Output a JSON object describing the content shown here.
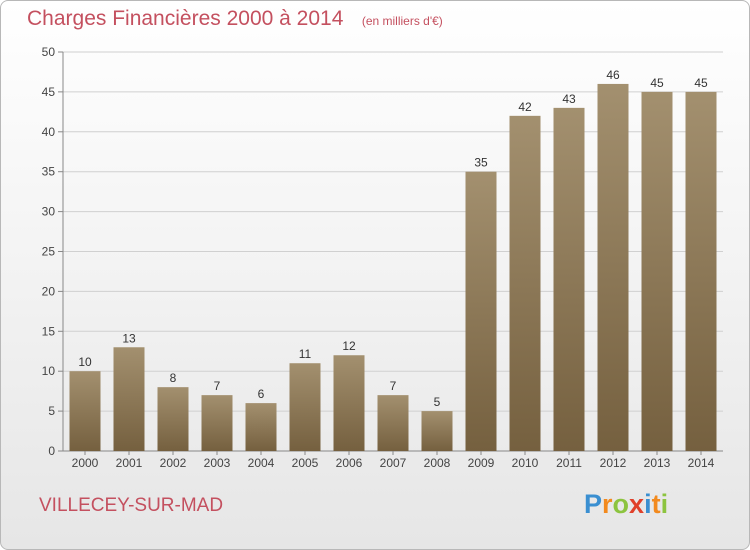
{
  "chart_data": {
    "type": "bar",
    "title": "Charges Financières 2000 à 2014",
    "unit": "(en milliers d'€)",
    "categories": [
      "2000",
      "2001",
      "2002",
      "2003",
      "2004",
      "2005",
      "2006",
      "2007",
      "2008",
      "2009",
      "2010",
      "2011",
      "2012",
      "2013",
      "2014"
    ],
    "values": [
      10,
      13,
      8,
      7,
      6,
      11,
      12,
      7,
      5,
      35,
      42,
      43,
      46,
      45,
      45
    ],
    "ylim": [
      0,
      50
    ],
    "yticks": [
      0,
      5,
      10,
      15,
      20,
      25,
      30,
      35,
      40,
      45,
      50
    ],
    "grid": true,
    "data_labels": true,
    "bar_color": "#a3906f",
    "bar_color_dark": "#75603f"
  },
  "commune": "VILLECEY-SUR-MAD",
  "logo": {
    "text": "Proxiti",
    "letters": [
      "P",
      "r",
      "o",
      "x",
      "i",
      "t",
      "i"
    ],
    "colors": [
      "#3a8fd1",
      "#f28a1e",
      "#8cc43f",
      "#e0402a",
      "#3a8fd1",
      "#f28a1e",
      "#8cc43f"
    ]
  },
  "colors": {
    "title": "#c4505f",
    "grid": "#d0d0d0",
    "axis": "#888888"
  }
}
